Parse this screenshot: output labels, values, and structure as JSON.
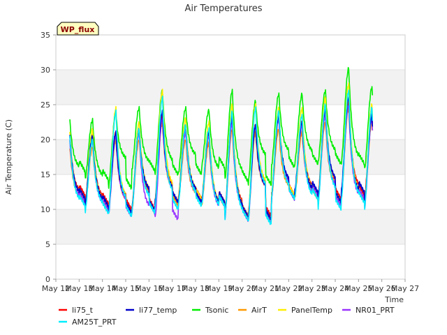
{
  "chart_data": {
    "type": "line",
    "title": "Air Temperatures",
    "xlabel": "Time",
    "ylabel": "Air Temperature (C)",
    "ylim": [
      0,
      35
    ],
    "yticks": [
      0,
      5,
      10,
      15,
      20,
      25,
      30,
      35
    ],
    "xlim": [
      12,
      27
    ],
    "xticks": [
      12,
      13,
      14,
      15,
      16,
      17,
      18,
      19,
      20,
      21,
      22,
      23,
      24,
      25,
      26,
      27
    ],
    "xtick_labels": [
      "May 12",
      "May 13",
      "May 14",
      "May 15",
      "May 16",
      "May 17",
      "May 18",
      "May 19",
      "May 20",
      "May 21",
      "May 22",
      "May 23",
      "May 24",
      "May 25",
      "May 26",
      "May 27"
    ],
    "grid": "horizontal bands",
    "legend_position": "bottom",
    "annotation": "WP_flux",
    "series": [
      {
        "name": "li75_t",
        "color": "#ff0000",
        "daily": [
          [
            12.0,
            21.5
          ],
          [
            10.8,
            20.5
          ],
          [
            10.0,
            21.0
          ],
          [
            10.0,
            21.0
          ],
          [
            11.0,
            23.5
          ],
          [
            11.5,
            21.5
          ],
          [
            11.0,
            21.0
          ],
          [
            9.0,
            23.0
          ],
          [
            9.0,
            22.0
          ],
          [
            12.0,
            23.0
          ],
          [
            12.0,
            22.5
          ],
          [
            11.5,
            24.0
          ],
          [
            12.0,
            25.5
          ],
          [
            11.5,
            23.5
          ]
        ]
      },
      {
        "name": "li77_temp",
        "color": "#0000cc",
        "daily": [
          [
            11.5,
            22.0
          ],
          [
            10.5,
            20.5
          ],
          [
            9.5,
            21.0
          ],
          [
            9.8,
            21.5
          ],
          [
            11.0,
            24.0
          ],
          [
            11.0,
            22.0
          ],
          [
            11.0,
            21.0
          ],
          [
            9.0,
            23.5
          ],
          [
            8.5,
            22.0
          ],
          [
            11.5,
            23.5
          ],
          [
            12.5,
            22.5
          ],
          [
            11.0,
            24.5
          ],
          [
            12.5,
            26.0
          ],
          [
            10.5,
            23.5
          ]
        ]
      },
      {
        "name": "Tsonic",
        "color": "#00ee00",
        "daily": [
          [
            15.5,
            23.8
          ],
          [
            14.2,
            22.8
          ],
          [
            13.0,
            23.8
          ],
          [
            15.5,
            24.5
          ],
          [
            15.0,
            27.0
          ],
          [
            15.0,
            24.5
          ],
          [
            16.0,
            24.2
          ],
          [
            14.0,
            27.0
          ],
          [
            13.5,
            25.5
          ],
          [
            16.0,
            26.5
          ],
          [
            16.5,
            26.5
          ],
          [
            16.5,
            27.0
          ],
          [
            16.5,
            30.2
          ],
          [
            15.5,
            27.5
          ]
        ]
      },
      {
        "name": "AirT",
        "color": "#ff9900",
        "daily": [
          [
            11.0,
            20.0
          ],
          [
            10.0,
            19.0
          ],
          [
            9.5,
            20.0
          ],
          [
            9.5,
            20.0
          ],
          [
            10.5,
            22.5
          ],
          [
            11.0,
            20.0
          ],
          [
            10.5,
            19.5
          ],
          [
            9.0,
            21.5
          ],
          [
            8.5,
            21.0
          ],
          [
            11.5,
            21.5
          ],
          [
            11.5,
            21.0
          ],
          [
            11.0,
            22.5
          ],
          [
            11.5,
            24.5
          ],
          [
            10.5,
            22.5
          ]
        ]
      },
      {
        "name": "PanelTemp",
        "color": "#ffee00",
        "daily": [
          [
            11.5,
            22.5
          ],
          [
            10.5,
            21.5
          ],
          [
            9.5,
            24.5
          ],
          [
            9.8,
            22.5
          ],
          [
            11.0,
            27.0
          ],
          [
            11.5,
            23.0
          ],
          [
            11.0,
            22.5
          ],
          [
            9.0,
            25.0
          ],
          [
            8.5,
            25.0
          ],
          [
            12.0,
            24.5
          ],
          [
            12.0,
            24.5
          ],
          [
            11.0,
            26.0
          ],
          [
            11.5,
            28.0
          ],
          [
            10.5,
            25.0
          ]
        ]
      },
      {
        "name": "NR01_PRT",
        "color": "#9933ff",
        "daily": [
          [
            11.0,
            21.0
          ],
          [
            10.0,
            20.0
          ],
          [
            9.0,
            20.5
          ],
          [
            9.5,
            21.0
          ],
          [
            8.5,
            23.0
          ],
          [
            11.0,
            21.0
          ],
          [
            10.5,
            20.5
          ],
          [
            8.5,
            22.5
          ],
          [
            8.0,
            22.0
          ],
          [
            11.5,
            23.0
          ],
          [
            12.0,
            22.0
          ],
          [
            10.5,
            23.5
          ],
          [
            11.5,
            25.0
          ],
          [
            10.0,
            23.0
          ]
        ]
      },
      {
        "name": "AM25T_PRT",
        "color": "#00eeff",
        "daily": [
          [
            10.5,
            22.0
          ],
          [
            9.5,
            20.0
          ],
          [
            9.0,
            24.0
          ],
          [
            9.5,
            21.5
          ],
          [
            10.0,
            26.0
          ],
          [
            10.5,
            22.0
          ],
          [
            10.5,
            21.5
          ],
          [
            8.5,
            24.0
          ],
          [
            7.8,
            24.5
          ],
          [
            11.5,
            24.0
          ],
          [
            11.5,
            23.5
          ],
          [
            10.0,
            25.0
          ],
          [
            11.0,
            27.0
          ],
          [
            10.0,
            24.5
          ]
        ]
      }
    ]
  }
}
